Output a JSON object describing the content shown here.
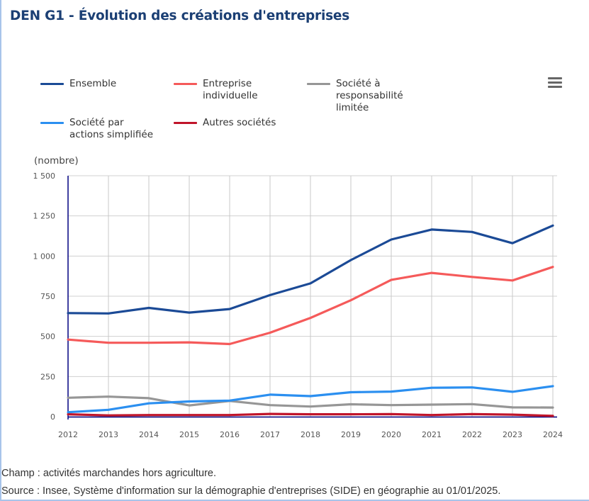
{
  "title": "DEN G1 - Évolution des créations d'entreprises",
  "menu": {
    "icon": "hamburger-menu-icon"
  },
  "chart_data": {
    "type": "line",
    "title": "DEN G1 - Évolution des créations d'entreprises",
    "xlabel": "",
    "ylabel": "(nombre)",
    "ylim": [
      0,
      1500
    ],
    "yticks": [
      0,
      250,
      500,
      750,
      1000,
      1250,
      1500
    ],
    "ytick_labels": [
      "0",
      "250",
      "500",
      "750",
      "1 000",
      "1 250",
      "1 500"
    ],
    "x": [
      "2012",
      "2013",
      "2014",
      "2015",
      "2016",
      "2017",
      "2018",
      "2019",
      "2020",
      "2021",
      "2022",
      "2023",
      "2024"
    ],
    "grid": true,
    "legend_position": "top",
    "series": [
      {
        "name": "Ensemble",
        "color": "#1b4a96",
        "values": [
          645,
          643,
          677,
          648,
          670,
          757,
          830,
          975,
          1103,
          1165,
          1150,
          1080,
          1190
        ]
      },
      {
        "name": "Entreprise\nindividuelle",
        "color": "#f55a5a",
        "values": [
          480,
          460,
          460,
          463,
          452,
          523,
          615,
          725,
          852,
          895,
          870,
          848,
          932
        ]
      },
      {
        "name": "Société à\nresponsabilité\nlimitée",
        "color": "#969696",
        "values": [
          118,
          125,
          115,
          70,
          98,
          72,
          63,
          77,
          72,
          75,
          78,
          58,
          57
        ]
      },
      {
        "name": "Société par\nactions simplifiée",
        "color": "#2b8ff0",
        "values": [
          28,
          43,
          83,
          95,
          100,
          137,
          128,
          152,
          156,
          180,
          182,
          155,
          190
        ]
      },
      {
        "name": "Autres sociétés",
        "color": "#c0142a",
        "values": [
          15,
          8,
          10,
          10,
          10,
          17,
          15,
          15,
          16,
          10,
          16,
          13,
          5
        ]
      }
    ]
  },
  "notes": {
    "champ": "Champ : activités marchandes hors agriculture.",
    "source": "Source : Insee, Système d'information sur la démographie d'entreprises (SIDE) en géographie au 01/01/2025."
  }
}
